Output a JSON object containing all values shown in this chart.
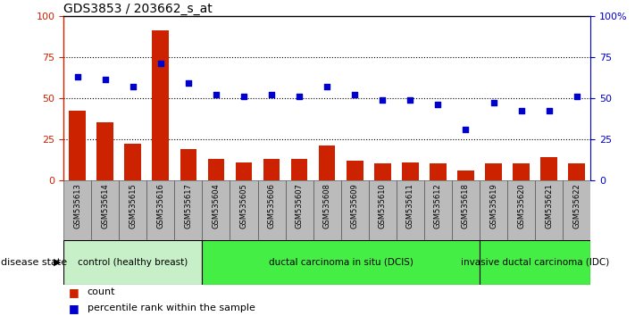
{
  "title": "GDS3853 / 203662_s_at",
  "samples": [
    "GSM535613",
    "GSM535614",
    "GSM535615",
    "GSM535616",
    "GSM535617",
    "GSM535604",
    "GSM535605",
    "GSM535606",
    "GSM535607",
    "GSM535608",
    "GSM535609",
    "GSM535610",
    "GSM535611",
    "GSM535612",
    "GSM535618",
    "GSM535619",
    "GSM535620",
    "GSM535621",
    "GSM535622"
  ],
  "counts": [
    42,
    35,
    22,
    91,
    19,
    13,
    11,
    13,
    13,
    21,
    12,
    10,
    11,
    10,
    6,
    10,
    10,
    14,
    10
  ],
  "percentiles": [
    63,
    61,
    57,
    71,
    59,
    52,
    51,
    52,
    51,
    57,
    52,
    49,
    49,
    46,
    31,
    47,
    42,
    42,
    51
  ],
  "groups": [
    {
      "label": "control (healthy breast)",
      "start": 0,
      "end": 5,
      "color": "#c8f0c8"
    },
    {
      "label": "ductal carcinoma in situ (DCIS)",
      "start": 5,
      "end": 15,
      "color": "#44ee44"
    },
    {
      "label": "invasive ductal carcinoma (IDC)",
      "start": 15,
      "end": 19,
      "color": "#44ee44"
    }
  ],
  "bar_color": "#cc2200",
  "dot_color": "#0000cc",
  "left_axis_color": "#cc2200",
  "right_axis_color": "#0000cc",
  "ylim_left": [
    0,
    100
  ],
  "ylim_right": [
    0,
    100
  ],
  "background_color": "#ffffff",
  "xtick_area_color": "#bbbbbb",
  "group_label": "disease state"
}
